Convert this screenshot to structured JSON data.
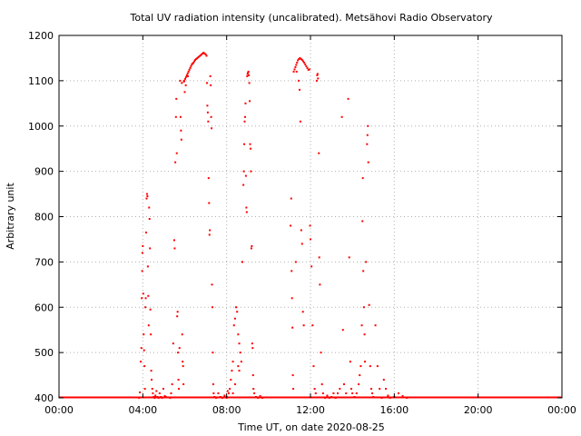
{
  "chart_data": {
    "type": "scatter",
    "title": "Total UV radiation intensity (uncalibrated). Metsähovi Radio Observatory",
    "xlabel": "Time UT, on date 2020-08-25",
    "ylabel": "Arbitrary unit",
    "xlim": [
      0,
      24
    ],
    "ylim": [
      400,
      1200
    ],
    "x_ticks": [
      {
        "value": 0,
        "label": "00:00"
      },
      {
        "value": 4,
        "label": "04:00"
      },
      {
        "value": 8,
        "label": "08:00"
      },
      {
        "value": 12,
        "label": "12:00"
      },
      {
        "value": 16,
        "label": "16:00"
      },
      {
        "value": 20,
        "label": "20:00"
      },
      {
        "value": 24,
        "label": "00:00"
      }
    ],
    "y_ticks": [
      {
        "value": 400,
        "label": "400"
      },
      {
        "value": 500,
        "label": "500"
      },
      {
        "value": 600,
        "label": "600"
      },
      {
        "value": 700,
        "label": "700"
      },
      {
        "value": 800,
        "label": "800"
      },
      {
        "value": 900,
        "label": "900"
      },
      {
        "value": 1000,
        "label": "1000"
      },
      {
        "value": 1100,
        "label": "1100"
      },
      {
        "value": 1200,
        "label": "1200"
      }
    ],
    "grid": true,
    "marker_color": "#ff0000",
    "baseline": {
      "y": 400,
      "x_start": 0,
      "x_end": 24
    },
    "series": [
      {
        "points": [
          [
            3.82,
            400
          ],
          [
            3.86,
            412
          ],
          [
            3.9,
            480
          ],
          [
            3.93,
            510
          ],
          [
            3.95,
            620
          ],
          [
            3.97,
            680
          ],
          [
            3.98,
            720
          ],
          [
            4.0,
            735
          ],
          [
            4.02,
            630
          ],
          [
            4.04,
            540
          ],
          [
            4.06,
            505
          ],
          [
            4.08,
            470
          ],
          [
            4.1,
            420
          ],
          [
            4.12,
            600
          ],
          [
            4.14,
            620
          ],
          [
            4.16,
            765
          ],
          [
            4.18,
            840
          ],
          [
            4.2,
            850
          ],
          [
            4.22,
            845
          ],
          [
            4.24,
            690
          ],
          [
            4.26,
            625
          ],
          [
            4.28,
            560
          ],
          [
            4.3,
            820
          ],
          [
            4.32,
            795
          ],
          [
            4.34,
            730
          ],
          [
            4.36,
            595
          ],
          [
            4.38,
            540
          ],
          [
            4.4,
            460
          ],
          [
            4.42,
            440
          ],
          [
            4.45,
            420
          ],
          [
            4.48,
            410
          ],
          [
            4.52,
            402
          ],
          [
            4.56,
            400
          ],
          [
            4.6,
            405
          ],
          [
            4.65,
            415
          ],
          [
            4.7,
            402
          ],
          [
            4.75,
            400
          ],
          [
            4.8,
            410
          ],
          [
            4.86,
            402
          ],
          [
            4.92,
            400
          ],
          [
            4.98,
            420
          ],
          [
            5.05,
            404
          ],
          [
            5.1,
            402
          ],
          [
            5.3,
            400
          ],
          [
            5.35,
            410
          ],
          [
            5.4,
            430
          ],
          [
            5.45,
            520
          ],
          [
            5.5,
            748
          ],
          [
            5.52,
            730
          ],
          [
            5.55,
            920
          ],
          [
            5.58,
            1020
          ],
          [
            5.6,
            1060
          ],
          [
            5.62,
            940
          ],
          [
            5.64,
            580
          ],
          [
            5.66,
            590
          ],
          [
            5.68,
            500
          ],
          [
            5.7,
            440
          ],
          [
            5.72,
            420
          ],
          [
            5.75,
            510
          ],
          [
            5.78,
            1100
          ],
          [
            5.8,
            1020
          ],
          [
            5.82,
            990
          ],
          [
            5.84,
            970
          ],
          [
            5.86,
            1095
          ],
          [
            5.88,
            540
          ],
          [
            5.9,
            480
          ],
          [
            5.92,
            470
          ],
          [
            5.94,
            430
          ],
          [
            5.96,
            1098
          ],
          [
            5.98,
            1100
          ],
          [
            6.02,
            1104
          ],
          [
            6.06,
            1108
          ],
          [
            6.1,
            1112
          ],
          [
            6.14,
            1116
          ],
          [
            6.18,
            1120
          ],
          [
            6.22,
            1124
          ],
          [
            6.26,
            1128
          ],
          [
            6.3,
            1132
          ],
          [
            6.34,
            1136
          ],
          [
            6.38,
            1138
          ],
          [
            6.42,
            1140
          ],
          [
            6.46,
            1143
          ],
          [
            6.5,
            1146
          ],
          [
            6.55,
            1148
          ],
          [
            6.6,
            1150
          ],
          [
            6.65,
            1152
          ],
          [
            6.7,
            1154
          ],
          [
            6.75,
            1156
          ],
          [
            6.8,
            1158
          ],
          [
            6.85,
            1160
          ],
          [
            6.9,
            1162
          ],
          [
            6.95,
            1160
          ],
          [
            7.0,
            1158
          ],
          [
            7.04,
            1155
          ],
          [
            6.0,
            1075
          ],
          [
            6.05,
            1090
          ],
          [
            6.15,
            1110
          ],
          [
            7.06,
            1095
          ],
          [
            7.08,
            1045
          ],
          [
            7.1,
            1030
          ],
          [
            7.12,
            1010
          ],
          [
            7.14,
            885
          ],
          [
            7.16,
            830
          ],
          [
            7.18,
            760
          ],
          [
            7.2,
            770
          ],
          [
            7.22,
            1110
          ],
          [
            7.24,
            1090
          ],
          [
            7.26,
            1020
          ],
          [
            7.28,
            995
          ],
          [
            7.3,
            650
          ],
          [
            7.32,
            600
          ],
          [
            7.34,
            500
          ],
          [
            7.36,
            430
          ],
          [
            7.38,
            410
          ],
          [
            7.42,
            402
          ],
          [
            7.5,
            400
          ],
          [
            7.6,
            410
          ],
          [
            7.7,
            402
          ],
          [
            7.8,
            400
          ],
          [
            7.9,
            405
          ],
          [
            8.0,
            400
          ],
          [
            8.1,
            410
          ],
          [
            8.15,
            420
          ],
          [
            8.2,
            440
          ],
          [
            8.25,
            460
          ],
          [
            8.3,
            480
          ],
          [
            8.35,
            560
          ],
          [
            8.4,
            575
          ],
          [
            8.45,
            600
          ],
          [
            8.5,
            590
          ],
          [
            8.55,
            540
          ],
          [
            8.6,
            520
          ],
          [
            8.65,
            500
          ],
          [
            8.7,
            480
          ],
          [
            8.75,
            700
          ],
          [
            8.8,
            870
          ],
          [
            8.82,
            900
          ],
          [
            8.84,
            960
          ],
          [
            8.86,
            1010
          ],
          [
            8.88,
            1020
          ],
          [
            8.9,
            1050
          ],
          [
            8.92,
            890
          ],
          [
            8.94,
            820
          ],
          [
            8.96,
            810
          ],
          [
            8.98,
            1110
          ],
          [
            9.0,
            1115
          ],
          [
            9.02,
            1118
          ],
          [
            9.04,
            1120
          ],
          [
            9.06,
            1112
          ],
          [
            9.08,
            1095
          ],
          [
            9.1,
            1055
          ],
          [
            9.12,
            960
          ],
          [
            9.14,
            950
          ],
          [
            9.16,
            900
          ],
          [
            9.18,
            730
          ],
          [
            9.2,
            735
          ],
          [
            9.22,
            520
          ],
          [
            9.24,
            510
          ],
          [
            9.26,
            450
          ],
          [
            9.28,
            420
          ],
          [
            9.32,
            410
          ],
          [
            9.4,
            402
          ],
          [
            9.5,
            400
          ],
          [
            9.6,
            404
          ],
          [
            9.7,
            400
          ],
          [
            8.0,
            402
          ],
          [
            8.05,
            415
          ],
          [
            8.55,
            470
          ],
          [
            8.6,
            460
          ],
          [
            8.4,
            430
          ],
          [
            8.3,
            410
          ],
          [
            11.05,
            780
          ],
          [
            11.08,
            840
          ],
          [
            11.1,
            680
          ],
          [
            11.12,
            620
          ],
          [
            11.14,
            555
          ],
          [
            11.16,
            450
          ],
          [
            11.18,
            420
          ],
          [
            11.2,
            1120
          ],
          [
            11.24,
            1125
          ],
          [
            11.28,
            1130
          ],
          [
            11.32,
            1135
          ],
          [
            11.36,
            1140
          ],
          [
            11.4,
            1145
          ],
          [
            11.45,
            1148
          ],
          [
            11.5,
            1150
          ],
          [
            11.55,
            1148
          ],
          [
            11.6,
            1146
          ],
          [
            11.65,
            1143
          ],
          [
            11.7,
            1140
          ],
          [
            11.75,
            1136
          ],
          [
            11.8,
            1132
          ],
          [
            11.85,
            1128
          ],
          [
            11.9,
            1124
          ],
          [
            11.95,
            1125
          ],
          [
            11.44,
            1100
          ],
          [
            11.48,
            1080
          ],
          [
            11.52,
            1010
          ],
          [
            11.56,
            770
          ],
          [
            11.6,
            740
          ],
          [
            11.64,
            590
          ],
          [
            11.68,
            560
          ],
          [
            11.3,
            700
          ],
          [
            11.34,
            1120
          ],
          [
            11.98,
            780
          ],
          [
            12.0,
            750
          ],
          [
            12.05,
            690
          ],
          [
            12.1,
            560
          ],
          [
            12.15,
            470
          ],
          [
            12.2,
            420
          ],
          [
            12.25,
            410
          ],
          [
            12.3,
            1100
          ],
          [
            12.32,
            1112
          ],
          [
            12.34,
            1115
          ],
          [
            12.36,
            1105
          ],
          [
            12.4,
            940
          ],
          [
            12.42,
            710
          ],
          [
            12.45,
            650
          ],
          [
            12.5,
            500
          ],
          [
            12.55,
            430
          ],
          [
            12.6,
            410
          ],
          [
            12.7,
            400
          ],
          [
            12.8,
            405
          ],
          [
            12.9,
            400
          ],
          [
            13.0,
            402
          ],
          [
            13.1,
            410
          ],
          [
            13.2,
            400
          ],
          [
            13.3,
            410
          ],
          [
            13.4,
            420
          ],
          [
            13.5,
            1020
          ],
          [
            13.55,
            550
          ],
          [
            13.6,
            430
          ],
          [
            13.7,
            410
          ],
          [
            13.8,
            1060
          ],
          [
            13.85,
            710
          ],
          [
            13.9,
            480
          ],
          [
            13.95,
            420
          ],
          [
            14.0,
            410
          ],
          [
            14.1,
            402
          ],
          [
            14.2,
            410
          ],
          [
            14.3,
            430
          ],
          [
            14.35,
            450
          ],
          [
            14.4,
            470
          ],
          [
            14.45,
            560
          ],
          [
            14.48,
            790
          ],
          [
            14.5,
            885
          ],
          [
            14.52,
            680
          ],
          [
            14.55,
            600
          ],
          [
            14.58,
            540
          ],
          [
            14.6,
            480
          ],
          [
            14.65,
            700
          ],
          [
            14.7,
            960
          ],
          [
            14.72,
            980
          ],
          [
            14.74,
            1000
          ],
          [
            14.76,
            920
          ],
          [
            14.8,
            605
          ],
          [
            14.85,
            470
          ],
          [
            14.9,
            420
          ],
          [
            14.95,
            410
          ],
          [
            15.0,
            402
          ],
          [
            15.1,
            560
          ],
          [
            15.2,
            470
          ],
          [
            15.3,
            420
          ],
          [
            15.4,
            400
          ],
          [
            15.5,
            440
          ],
          [
            15.6,
            420
          ],
          [
            15.7,
            405
          ],
          [
            15.8,
            400
          ],
          [
            16.0,
            402
          ],
          [
            16.2,
            410
          ],
          [
            16.4,
            404
          ],
          [
            16.6,
            400
          ]
        ]
      }
    ]
  }
}
